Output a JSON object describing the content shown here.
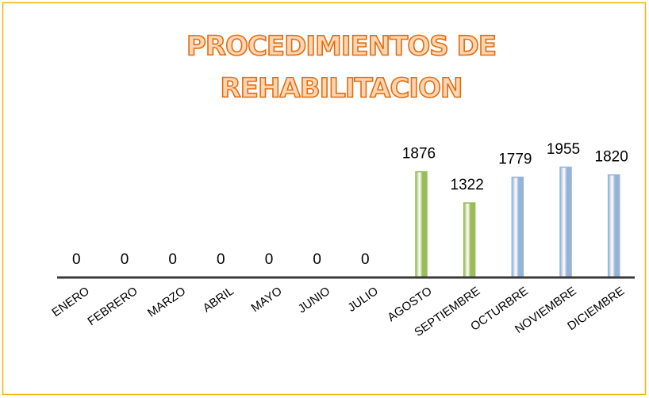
{
  "chart_data": {
    "type": "bar",
    "title": [
      "PROCEDIMIENTOS DE",
      "REHABILITACION"
    ],
    "categories": [
      "ENERO",
      "FEBRERO",
      "MARZO",
      "ABRIL",
      "MAYO",
      "JUNIO",
      "JULIO",
      "AGOSTO",
      "SEPTIEMBRE",
      "OCTURBRE",
      "NOVIEMBRE",
      "DICIEMBRE"
    ],
    "values": [
      0,
      0,
      0,
      0,
      0,
      0,
      0,
      1876,
      1322,
      1779,
      1955,
      1820
    ],
    "colors": [
      "#95b3d7",
      "#95b3d7",
      "#95b3d7",
      "#95b3d7",
      "#95b3d7",
      "#95b3d7",
      "#95b3d7",
      "#9bbb59",
      "#9bbb59",
      "#95b3d7",
      "#95b3d7",
      "#95b3d7"
    ]
  }
}
